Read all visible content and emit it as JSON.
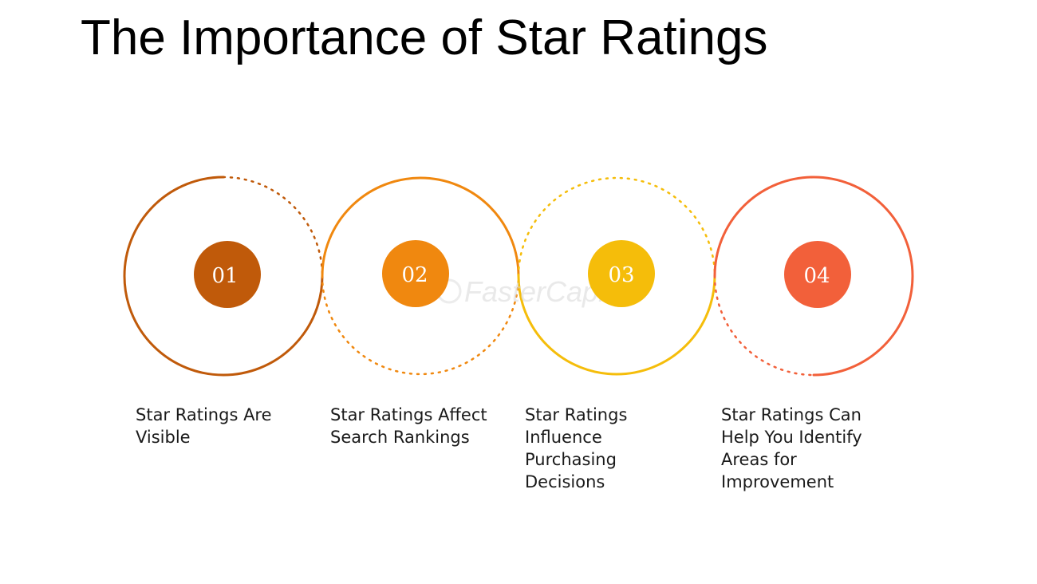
{
  "title": "The Importance of Star Ratings",
  "watermark": "FasterCapital",
  "steps": [
    {
      "number": "01",
      "label": "Star Ratings Are Visible",
      "color": "#c05a0a"
    },
    {
      "number": "02",
      "label": "Star Ratings Affect Search Rankings",
      "color": "#f0880f"
    },
    {
      "number": "03",
      "label": "Star Ratings Influence Purchasing Decisions",
      "color": "#f5bd0a"
    },
    {
      "number": "04",
      "label": "Star Ratings Can Help You Identify Areas for Improvement",
      "color": "#f2603a"
    }
  ]
}
